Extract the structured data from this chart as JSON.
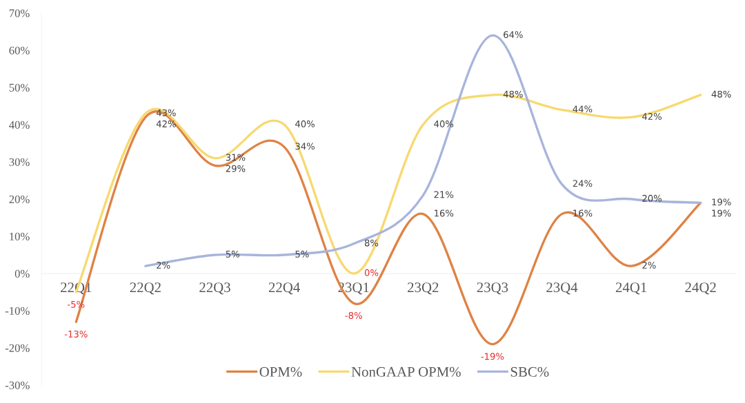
{
  "chart_data": {
    "type": "line",
    "categories": [
      "22Q1",
      "22Q2",
      "22Q3",
      "22Q4",
      "23Q1",
      "23Q2",
      "23Q3",
      "23Q4",
      "24Q1",
      "24Q2"
    ],
    "series": [
      {
        "name": "OPM%",
        "color": "#df8244",
        "values": [
          -13,
          42,
          29,
          34,
          -8,
          16,
          -19,
          16,
          2,
          19
        ],
        "value_labels": [
          "-13%",
          "42%",
          "29%",
          "34%",
          "-8%",
          "16%",
          "-19%",
          "16%",
          "2%",
          "19%"
        ]
      },
      {
        "name": "NonGAAP OPM%",
        "color": "#f7d96f",
        "values": [
          -5,
          43,
          31,
          40,
          0,
          40,
          48,
          44,
          42,
          48
        ],
        "value_labels": [
          "-5%",
          "43%",
          "31%",
          "40%",
          "0%",
          "40%",
          "48%",
          "44%",
          "42%",
          "48%"
        ]
      },
      {
        "name": "SBC%",
        "color": "#a8b4dc",
        "values": [
          null,
          2,
          5,
          5,
          8,
          21,
          64,
          24,
          20,
          19
        ],
        "value_labels": [
          null,
          "2%",
          "5%",
          "5%",
          "8%",
          "21%",
          "64%",
          "24%",
          "20%",
          "19%"
        ]
      }
    ],
    "ylim": [
      -30,
      70
    ],
    "yticks": [
      {
        "value": -30,
        "label": "-30%"
      },
      {
        "value": -20,
        "label": "-20%"
      },
      {
        "value": -10,
        "label": "-10%"
      },
      {
        "value": 0,
        "label": "0%"
      },
      {
        "value": 10,
        "label": "10%"
      },
      {
        "value": 20,
        "label": "20%"
      },
      {
        "value": 30,
        "label": "30%"
      },
      {
        "value": 40,
        "label": "40%"
      },
      {
        "value": 50,
        "label": "50%"
      },
      {
        "value": 60,
        "label": "60%"
      },
      {
        "value": 70,
        "label": "70%"
      }
    ],
    "legend": "bottom"
  }
}
